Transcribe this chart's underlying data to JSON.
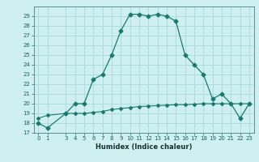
{
  "title": "",
  "xlabel": "Humidex (Indice chaleur)",
  "x_main": [
    0,
    1,
    3,
    4,
    5,
    6,
    7,
    8,
    9,
    10,
    11,
    12,
    13,
    14,
    15,
    16,
    17,
    18,
    19,
    20,
    21,
    22,
    23
  ],
  "y_main": [
    18,
    17.5,
    19,
    20,
    20,
    22.5,
    23,
    25,
    27.5,
    29.2,
    29.2,
    29,
    29.2,
    29,
    28.5,
    25,
    24,
    23,
    20.5,
    21,
    20,
    18.5,
    20
  ],
  "x_flat": [
    0,
    1,
    3,
    4,
    5,
    6,
    7,
    8,
    9,
    10,
    11,
    12,
    13,
    14,
    15,
    16,
    17,
    18,
    19,
    20,
    21,
    22,
    23
  ],
  "y_flat": [
    18.5,
    18.8,
    19.0,
    19.0,
    19.0,
    19.1,
    19.2,
    19.4,
    19.5,
    19.6,
    19.7,
    19.75,
    19.8,
    19.85,
    19.9,
    19.9,
    19.95,
    20.0,
    20.0,
    20.0,
    20.0,
    20.0,
    20.0
  ],
  "line_color": "#1a7a6e",
  "marker": "D",
  "markersize": 2.5,
  "bg_color": "#cef0f0",
  "grid_color": "#aadada",
  "ylim": [
    17,
    30
  ],
  "xlim": [
    -0.5,
    23.5
  ],
  "yticks": [
    17,
    18,
    19,
    20,
    21,
    22,
    23,
    24,
    25,
    26,
    27,
    28,
    29
  ],
  "xticks": [
    0,
    1,
    3,
    4,
    5,
    6,
    7,
    8,
    9,
    10,
    11,
    12,
    13,
    14,
    15,
    16,
    17,
    18,
    19,
    20,
    21,
    22,
    23
  ],
  "xtick_labels": [
    "0",
    "1",
    "3",
    "4",
    "5",
    "6",
    "7",
    "8",
    "9",
    "10",
    "11",
    "12",
    "13",
    "14",
    "15",
    "16",
    "17",
    "18",
    "19",
    "20",
    "21",
    "22",
    "23"
  ]
}
